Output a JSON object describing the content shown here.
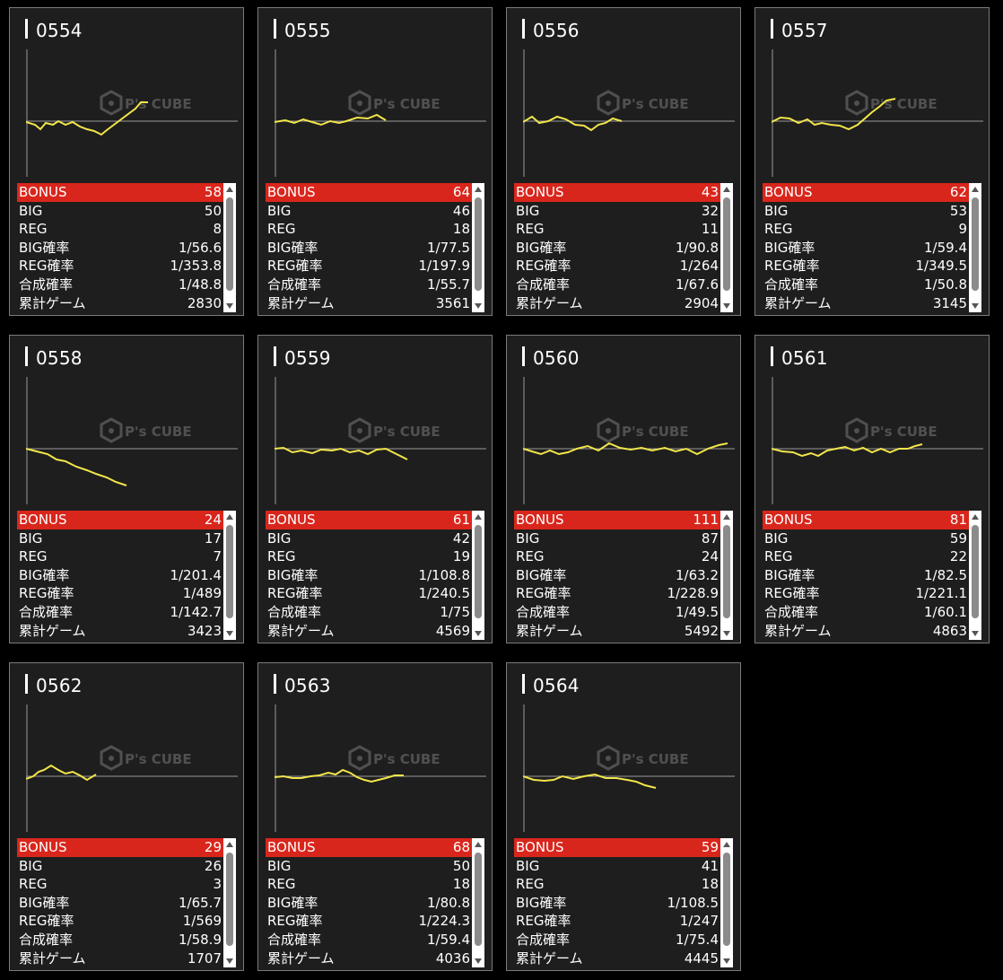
{
  "labels": {
    "bonus": "BONUS",
    "big": "BIG",
    "reg": "REG",
    "big_rate": "BIG確率",
    "reg_rate": "REG確率",
    "combined_rate": "合成確率",
    "total_games": "累計ゲーム"
  },
  "watermark": {
    "text": "P's CUBE"
  },
  "colors": {
    "background": "#000000",
    "card": "#1e1e1e",
    "bonus_row": "#d9261c",
    "graph_line": "#f2e64b",
    "axis": "#9a9a9a"
  },
  "machines": [
    {
      "id": "0554",
      "bonus": "58",
      "big": "50",
      "reg": "8",
      "big_rate": "1/56.6",
      "reg_rate": "1/353.8",
      "combined_rate": "1/48.8",
      "total_games": "2830"
    },
    {
      "id": "0555",
      "bonus": "64",
      "big": "46",
      "reg": "18",
      "big_rate": "1/77.5",
      "reg_rate": "1/197.9",
      "combined_rate": "1/55.7",
      "total_games": "3561"
    },
    {
      "id": "0556",
      "bonus": "43",
      "big": "32",
      "reg": "11",
      "big_rate": "1/90.8",
      "reg_rate": "1/264",
      "combined_rate": "1/67.6",
      "total_games": "2904"
    },
    {
      "id": "0557",
      "bonus": "62",
      "big": "53",
      "reg": "9",
      "big_rate": "1/59.4",
      "reg_rate": "1/349.5",
      "combined_rate": "1/50.8",
      "total_games": "3145"
    },
    {
      "id": "0558",
      "bonus": "24",
      "big": "17",
      "reg": "7",
      "big_rate": "1/201.4",
      "reg_rate": "1/489",
      "combined_rate": "1/142.7",
      "total_games": "3423"
    },
    {
      "id": "0559",
      "bonus": "61",
      "big": "42",
      "reg": "19",
      "big_rate": "1/108.8",
      "reg_rate": "1/240.5",
      "combined_rate": "1/75",
      "total_games": "4569"
    },
    {
      "id": "0560",
      "bonus": "111",
      "big": "87",
      "reg": "24",
      "big_rate": "1/63.2",
      "reg_rate": "1/228.9",
      "combined_rate": "1/49.5",
      "total_games": "5492"
    },
    {
      "id": "0561",
      "bonus": "81",
      "big": "59",
      "reg": "22",
      "big_rate": "1/82.5",
      "reg_rate": "1/221.1",
      "combined_rate": "1/60.1",
      "total_games": "4863"
    },
    {
      "id": "0562",
      "bonus": "29",
      "big": "26",
      "reg": "3",
      "big_rate": "1/65.7",
      "reg_rate": "1/569",
      "combined_rate": "1/58.9",
      "total_games": "1707"
    },
    {
      "id": "0563",
      "bonus": "68",
      "big": "50",
      "reg": "18",
      "big_rate": "1/80.8",
      "reg_rate": "1/224.3",
      "combined_rate": "1/59.4",
      "total_games": "4036"
    },
    {
      "id": "0564",
      "bonus": "59",
      "big": "41",
      "reg": "18",
      "big_rate": "1/108.5",
      "reg_rate": "1/247",
      "combined_rate": "1/75.4",
      "total_games": "4445"
    }
  ]
}
